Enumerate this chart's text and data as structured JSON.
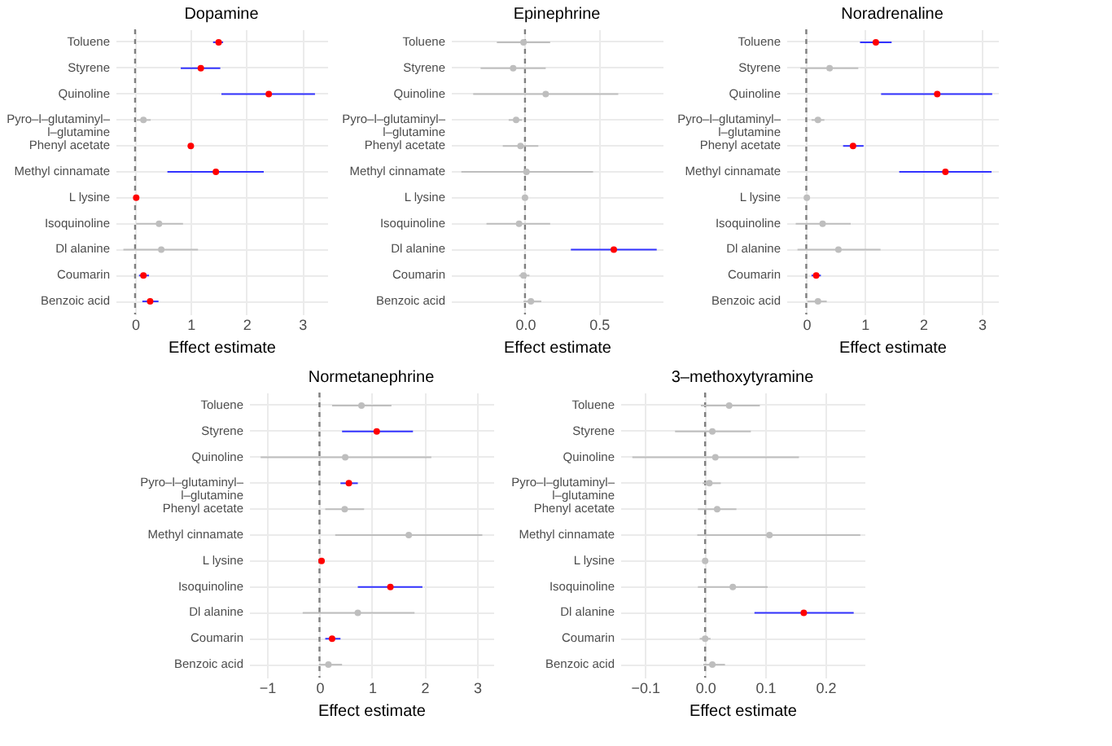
{
  "chart_data": [
    {
      "type": "scatter",
      "orientation": "horizontal",
      "title": "Dopamine",
      "xlabel": "Effect estimate",
      "categories": [
        "Toluene",
        "Styrene",
        "Quinoline",
        "Pyro–l–glutaminyl–l–glutamine",
        "Phenyl acetate",
        "Methyl cinnamate",
        "L lysine",
        "Isoquinoline",
        "Dl alanine",
        "Coumarin",
        "Benzoic acid"
      ],
      "series": [
        {
          "color": "#ff0000",
          "values": [
            1.5,
            1.18,
            2.4,
            null,
            1.0,
            1.45,
            0.02,
            null,
            null,
            0.15,
            0.27
          ],
          "errors": [
            [
              1.4,
              1.58
            ],
            [
              0.82,
              1.53
            ],
            [
              1.55,
              3.23
            ],
            null,
            [
              0.97,
              1.03
            ],
            [
              0.58,
              2.31
            ],
            [
              -0.01,
              0.05
            ],
            null,
            null,
            [
              0.07,
              0.25
            ],
            [
              0.13,
              0.42
            ]
          ]
        },
        {
          "color": "#bebebe",
          "values": [
            null,
            null,
            null,
            0.15,
            null,
            null,
            null,
            0.43,
            0.47,
            null,
            null
          ],
          "errors": [
            null,
            null,
            null,
            [
              0.03,
              0.28
            ],
            null,
            null,
            null,
            [
              0.02,
              0.86
            ],
            [
              -0.21,
              1.13
            ],
            null,
            null
          ]
        }
      ],
      "xlim": [
        -0.35,
        3.45
      ],
      "xticks": [
        0,
        1,
        2,
        3
      ],
      "grid": true,
      "marker": "circle",
      "ref_lines": [
        {
          "axis": "x",
          "value": 0,
          "color": "#808080",
          "line_style": "dashed"
        }
      ]
    },
    {
      "type": "scatter",
      "orientation": "horizontal",
      "title": "Epinephrine",
      "xlabel": "Effect estimate",
      "categories": [
        "Toluene",
        "Styrene",
        "Quinoline",
        "Pyro–l–glutaminyl–l–glutamine",
        "Phenyl acetate",
        "Methyl cinnamate",
        "L lysine",
        "Isoquinoline",
        "Dl alanine",
        "Coumarin",
        "Benzoic acid"
      ],
      "series": [
        {
          "color": "#ff0000",
          "values": [
            null,
            null,
            null,
            null,
            null,
            null,
            null,
            null,
            0.6,
            null,
            null
          ],
          "errors": [
            null,
            null,
            null,
            null,
            null,
            null,
            null,
            null,
            [
              0.31,
              0.89
            ],
            null,
            null
          ]
        },
        {
          "color": "#bebebe",
          "values": [
            -0.01,
            -0.08,
            0.14,
            -0.06,
            -0.03,
            0.01,
            0,
            -0.04,
            null,
            -0.01,
            0.04
          ],
          "errors": [
            [
              -0.19,
              0.17
            ],
            [
              -0.3,
              0.14
            ],
            [
              -0.35,
              0.63
            ],
            [
              -0.11,
              -0.02
            ],
            [
              -0.15,
              0.09
            ],
            [
              -0.43,
              0.46
            ],
            [
              -0.01,
              0.01
            ],
            [
              -0.26,
              0.17
            ],
            null,
            [
              -0.04,
              0.03
            ],
            [
              -0.01,
              0.11
            ]
          ]
        }
      ],
      "xlim": [
        -0.5,
        0.93
      ],
      "xticks": [
        {
          "value": 0,
          "label": "0.0"
        },
        {
          "value": 0.5,
          "label": "0.5"
        }
      ],
      "grid": true,
      "marker": "circle",
      "ref_lines": [
        {
          "axis": "x",
          "value": 0,
          "color": "#808080",
          "line_style": "dashed"
        }
      ]
    },
    {
      "type": "scatter",
      "orientation": "horizontal",
      "title": "Noradrenaline",
      "xlabel": "Effect estimate",
      "categories": [
        "Toluene",
        "Styrene",
        "Quinoline",
        "Pyro–l–glutaminyl–l–glutamine",
        "Phenyl acetate",
        "Methyl cinnamate",
        "L lysine",
        "Isoquinoline",
        "Dl alanine",
        "Coumarin",
        "Benzoic acid"
      ],
      "series": [
        {
          "color": "#ff0000",
          "values": [
            1.19,
            null,
            2.24,
            null,
            0.8,
            2.38,
            null,
            null,
            null,
            0.17,
            null
          ],
          "errors": [
            [
              0.92,
              1.46
            ],
            null,
            [
              1.28,
              3.18
            ],
            null,
            [
              0.63,
              0.98
            ],
            [
              1.59,
              3.17
            ],
            null,
            null,
            null,
            [
              0.09,
              0.25
            ],
            null
          ]
        },
        {
          "color": "#bebebe",
          "values": [
            null,
            0.4,
            null,
            0.2,
            null,
            null,
            0.01,
            0.28,
            0.55,
            null,
            0.2
          ],
          "errors": [
            null,
            [
              -0.1,
              0.89
            ],
            null,
            [
              0.09,
              0.31
            ],
            null,
            null,
            [
              0,
              0.03
            ],
            [
              -0.18,
              0.76
            ],
            [
              -0.15,
              1.27
            ],
            null,
            [
              0.02,
              0.35
            ]
          ]
        }
      ],
      "xlim": [
        -0.34,
        3.28
      ],
      "xticks": [
        0,
        1,
        2,
        3
      ],
      "grid": true,
      "marker": "circle",
      "ref_lines": [
        {
          "axis": "x",
          "value": 0,
          "color": "#808080",
          "line_style": "dashed"
        }
      ]
    },
    {
      "type": "scatter",
      "orientation": "horizontal",
      "title": "Normetanephrine",
      "xlabel": "Effect estimate",
      "categories": [
        "Toluene",
        "Styrene",
        "Quinoline",
        "Pyro–l–glutaminyl–l–glutamine",
        "Phenyl acetate",
        "Methyl cinnamate",
        "L lysine",
        "Isoquinoline",
        "Dl alanine",
        "Coumarin",
        "Benzoic acid"
      ],
      "series": [
        {
          "color": "#ff0000",
          "values": [
            null,
            1.09,
            null,
            0.56,
            null,
            null,
            0.04,
            1.35,
            null,
            0.24,
            null
          ],
          "errors": [
            null,
            [
              0.43,
              1.78
            ],
            null,
            [
              0.4,
              0.73
            ],
            null,
            null,
            [
              0.01,
              0.07
            ],
            [
              0.73,
              1.96
            ],
            null,
            [
              0.11,
              0.4
            ],
            null
          ]
        },
        {
          "color": "#bebebe",
          "values": [
            0.8,
            null,
            0.49,
            null,
            0.48,
            1.7,
            null,
            null,
            0.73,
            null,
            0.17
          ],
          "errors": [
            [
              0.24,
              1.37
            ],
            null,
            [
              -1.12,
              2.13
            ],
            null,
            [
              0.11,
              0.85
            ],
            [
              0.3,
              3.1
            ],
            null,
            null,
            [
              -0.32,
              1.81
            ],
            null,
            [
              -0.01,
              0.43
            ]
          ]
        }
      ],
      "xlim": [
        -1.34,
        3.31
      ],
      "xticks": [
        {
          "value": -1,
          "label": "−1"
        },
        0,
        1,
        2,
        3
      ],
      "grid": true,
      "marker": "circle",
      "ref_lines": [
        {
          "axis": "x",
          "value": 0,
          "color": "#808080",
          "line_style": "dashed"
        }
      ]
    },
    {
      "type": "scatter",
      "orientation": "horizontal",
      "title": "3–methoxytyramine",
      "xlabel": "Effect estimate",
      "categories": [
        "Toluene",
        "Styrene",
        "Quinoline",
        "Pyro–l–glutaminyl–l–glutamine",
        "Phenyl acetate",
        "Methyl cinnamate",
        "L lysine",
        "Isoquinoline",
        "Dl alanine",
        "Coumarin",
        "Benzoic acid"
      ],
      "series": [
        {
          "color": "#ff0000",
          "values": [
            null,
            null,
            null,
            null,
            null,
            null,
            null,
            null,
            0.164,
            null,
            null
          ],
          "errors": [
            null,
            null,
            null,
            null,
            null,
            null,
            null,
            null,
            [
              0.082,
              0.247
            ],
            null,
            null
          ]
        },
        {
          "color": "#bebebe",
          "values": [
            0.04,
            0.012,
            0.017,
            0.007,
            0.02,
            0.107,
            0,
            0.046,
            null,
            0,
            0.012
          ],
          "errors": [
            [
              -0.007,
              0.091
            ],
            [
              -0.05,
              0.076
            ],
            [
              -0.121,
              0.156
            ],
            [
              -0.004,
              0.026
            ],
            [
              -0.012,
              0.052
            ],
            [
              -0.013,
              0.258
            ],
            [
              -0.002,
              0.002
            ],
            [
              -0.012,
              0.104
            ],
            null,
            [
              -0.009,
              0.009
            ],
            [
              -0.003,
              0.033
            ]
          ]
        }
      ],
      "xlim": [
        -0.141,
        0.265
      ],
      "xticks": [
        {
          "value": -0.1,
          "label": "−0.1"
        },
        {
          "value": 0,
          "label": "0.0"
        },
        {
          "value": 0.1,
          "label": "0.1"
        },
        {
          "value": 0.2,
          "label": "0.2"
        }
      ],
      "grid": true,
      "marker": "circle",
      "ref_lines": [
        {
          "axis": "x",
          "value": 0,
          "color": "#808080",
          "line_style": "dashed"
        }
      ]
    }
  ]
}
